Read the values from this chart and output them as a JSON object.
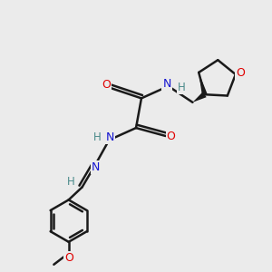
{
  "background_color": "#ebebeb",
  "bond_color": "#1a1a1a",
  "bond_width": 1.8,
  "wedge_color": "#1a1a1a",
  "atom_colors": {
    "O": "#e00000",
    "N": "#1414d0",
    "H": "#4a8a8a",
    "C": "#1a1a1a"
  },
  "figsize": [
    3.0,
    3.0
  ],
  "dpi": 100
}
